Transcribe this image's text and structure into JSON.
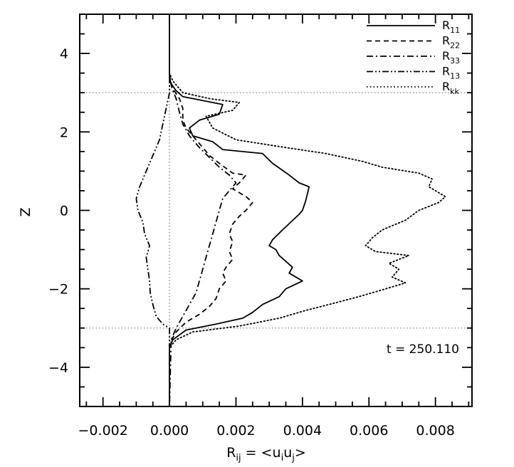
{
  "chart_data": {
    "type": "line",
    "xlabel": "R_ij = <u_i u_j>",
    "xlabel_parts": {
      "main": "R",
      "main_sub": "ij",
      "eq": " = <u",
      "u1": "i",
      "mid": "u",
      "u2": "j",
      "end": ">"
    },
    "ylabel": "Z",
    "xlim": [
      -0.0027,
      0.0091
    ],
    "ylim": [
      -5,
      5
    ],
    "xticks": [
      -0.002,
      0.0,
      0.002,
      0.004,
      0.006,
      0.008
    ],
    "xtick_labels": [
      "−0.002",
      "0.000",
      "0.002",
      "0.004",
      "0.006",
      "0.008"
    ],
    "yticks": [
      -4,
      -2,
      0,
      2,
      4
    ],
    "ytick_labels": [
      "−4",
      "−2",
      "0",
      "2",
      "4"
    ],
    "annotation": "t = 250.110",
    "legend_position": "top-right",
    "reference_lines": {
      "horizontal": [
        3,
        -3
      ],
      "vertical": [
        0
      ]
    },
    "series": [
      {
        "name": "R",
        "sub": "11",
        "style": "solid",
        "points": [
          [
            0,
            5
          ],
          [
            0,
            3.5
          ],
          [
            3e-05,
            3.25
          ],
          [
            0.0002,
            3.05
          ],
          [
            0.0004,
            2.9
          ],
          [
            0.001,
            2.8
          ],
          [
            0.0016,
            2.7
          ],
          [
            0.0015,
            2.45
          ],
          [
            0.0009,
            2.3
          ],
          [
            0.0006,
            2.1
          ],
          [
            0.0007,
            1.9
          ],
          [
            0.0013,
            1.75
          ],
          [
            0.0016,
            1.55
          ],
          [
            0.0028,
            1.45
          ],
          [
            0.0031,
            1.2
          ],
          [
            0.0036,
            0.9
          ],
          [
            0.0039,
            0.7
          ],
          [
            0.0042,
            0.6
          ],
          [
            0.0041,
            0.25
          ],
          [
            0.004,
            0.0
          ],
          [
            0.0039,
            -0.1
          ],
          [
            0.0034,
            -0.5
          ],
          [
            0.0031,
            -0.75
          ],
          [
            0.003,
            -0.9
          ],
          [
            0.0032,
            -1.0
          ],
          [
            0.0033,
            -1.15
          ],
          [
            0.0035,
            -1.3
          ],
          [
            0.0037,
            -1.45
          ],
          [
            0.0036,
            -1.6
          ],
          [
            0.004,
            -1.8
          ],
          [
            0.0035,
            -2.0
          ],
          [
            0.0033,
            -2.2
          ],
          [
            0.0028,
            -2.4
          ],
          [
            0.0025,
            -2.6
          ],
          [
            0.0022,
            -2.75
          ],
          [
            0.0014,
            -2.9
          ],
          [
            0.0005,
            -3.05
          ],
          [
            0.0001,
            -3.3
          ],
          [
            0,
            -3.5
          ],
          [
            0,
            -5
          ]
        ]
      },
      {
        "name": "R",
        "sub": "22",
        "style": "dashed",
        "points": [
          [
            0,
            5
          ],
          [
            0,
            3.4
          ],
          [
            0.0001,
            3.1
          ],
          [
            0.0003,
            2.85
          ],
          [
            0.0004,
            2.6
          ],
          [
            0.0004,
            2.3
          ],
          [
            0.0005,
            2.1
          ],
          [
            0.0007,
            1.9
          ],
          [
            0.001,
            1.6
          ],
          [
            0.0012,
            1.4
          ],
          [
            0.0015,
            1.2
          ],
          [
            0.0019,
            0.95
          ],
          [
            0.0023,
            0.9
          ],
          [
            0.0021,
            0.7
          ],
          [
            0.0019,
            0.55
          ],
          [
            0.0023,
            0.35
          ],
          [
            0.0025,
            0.2
          ],
          [
            0.0023,
            0.0
          ],
          [
            0.0021,
            -0.15
          ],
          [
            0.0019,
            -0.35
          ],
          [
            0.0018,
            -0.6
          ],
          [
            0.0019,
            -0.8
          ],
          [
            0.0018,
            -1.05
          ],
          [
            0.0019,
            -1.25
          ],
          [
            0.0017,
            -1.45
          ],
          [
            0.0016,
            -1.6
          ],
          [
            0.0017,
            -1.8
          ],
          [
            0.0015,
            -2.0
          ],
          [
            0.0014,
            -2.25
          ],
          [
            0.0012,
            -2.45
          ],
          [
            0.0009,
            -2.65
          ],
          [
            0.0005,
            -2.85
          ],
          [
            0.0002,
            -3.1
          ],
          [
            0,
            -3.4
          ],
          [
            0,
            -5
          ]
        ]
      },
      {
        "name": "R",
        "sub": "33",
        "style": "dashdot",
        "points": [
          [
            0,
            5
          ],
          [
            0,
            3.4
          ],
          [
            8e-05,
            3.1
          ],
          [
            0.0002,
            2.85
          ],
          [
            0.0003,
            2.5
          ],
          [
            0.0004,
            2.2
          ],
          [
            0.0006,
            1.9
          ],
          [
            0.0009,
            1.6
          ],
          [
            0.0012,
            1.35
          ],
          [
            0.0015,
            1.1
          ],
          [
            0.0018,
            0.9
          ],
          [
            0.002,
            0.7
          ],
          [
            0.0018,
            0.5
          ],
          [
            0.0016,
            0.3
          ],
          [
            0.0015,
            0.0
          ],
          [
            0.0014,
            -0.3
          ],
          [
            0.0013,
            -0.6
          ],
          [
            0.0012,
            -0.9
          ],
          [
            0.0011,
            -1.2
          ],
          [
            0.001,
            -1.5
          ],
          [
            0.0009,
            -1.8
          ],
          [
            0.0008,
            -2.1
          ],
          [
            0.0006,
            -2.4
          ],
          [
            0.0004,
            -2.7
          ],
          [
            0.0002,
            -3.0
          ],
          [
            5e-05,
            -3.3
          ],
          [
            0,
            -5
          ]
        ]
      },
      {
        "name": "R",
        "sub": "13",
        "style": "dashdotdot",
        "points": [
          [
            0,
            5
          ],
          [
            0,
            3.0
          ],
          [
            -0.0001,
            2.6
          ],
          [
            -0.0002,
            2.2
          ],
          [
            -0.0003,
            1.8
          ],
          [
            -0.0005,
            1.4
          ],
          [
            -0.0007,
            1.0
          ],
          [
            -0.0009,
            0.6
          ],
          [
            -0.001,
            0.3
          ],
          [
            -0.00095,
            0.0
          ],
          [
            -0.0008,
            -0.3
          ],
          [
            -0.00075,
            -0.6
          ],
          [
            -0.0006,
            -0.9
          ],
          [
            -0.0007,
            -1.2
          ],
          [
            -0.00065,
            -1.5
          ],
          [
            -0.0006,
            -1.8
          ],
          [
            -0.00058,
            -2.1
          ],
          [
            -0.0005,
            -2.4
          ],
          [
            -0.0004,
            -2.7
          ],
          [
            -0.0002,
            -2.9
          ],
          [
            0,
            -3.0
          ],
          [
            0,
            -5
          ]
        ]
      },
      {
        "name": "R",
        "sub": "kk",
        "style": "dotted",
        "points": [
          [
            0,
            5
          ],
          [
            0,
            3.5
          ],
          [
            0.0001,
            3.3
          ],
          [
            0.0004,
            3.0
          ],
          [
            0.0012,
            2.85
          ],
          [
            0.0021,
            2.75
          ],
          [
            0.0019,
            2.55
          ],
          [
            0.0011,
            2.4
          ],
          [
            0.0013,
            2.1
          ],
          [
            0.002,
            1.8
          ],
          [
            0.0035,
            1.6
          ],
          [
            0.0047,
            1.45
          ],
          [
            0.0058,
            1.25
          ],
          [
            0.0064,
            1.1
          ],
          [
            0.0075,
            0.95
          ],
          [
            0.0079,
            0.8
          ],
          [
            0.0078,
            0.6
          ],
          [
            0.0083,
            0.35
          ],
          [
            0.0081,
            0.2
          ],
          [
            0.0075,
            0.0
          ],
          [
            0.0071,
            -0.25
          ],
          [
            0.0064,
            -0.5
          ],
          [
            0.0061,
            -0.7
          ],
          [
            0.0059,
            -0.9
          ],
          [
            0.0062,
            -1.05
          ],
          [
            0.0067,
            -1.1
          ],
          [
            0.0072,
            -1.15
          ],
          [
            0.0066,
            -1.35
          ],
          [
            0.0069,
            -1.5
          ],
          [
            0.0067,
            -1.7
          ],
          [
            0.0071,
            -1.85
          ],
          [
            0.0063,
            -2.05
          ],
          [
            0.0057,
            -2.2
          ],
          [
            0.0048,
            -2.4
          ],
          [
            0.0041,
            -2.55
          ],
          [
            0.0033,
            -2.75
          ],
          [
            0.0021,
            -2.95
          ],
          [
            0.0007,
            -3.1
          ],
          [
            0.0002,
            -3.3
          ],
          [
            0,
            -3.5
          ],
          [
            0,
            -5
          ]
        ]
      }
    ]
  }
}
